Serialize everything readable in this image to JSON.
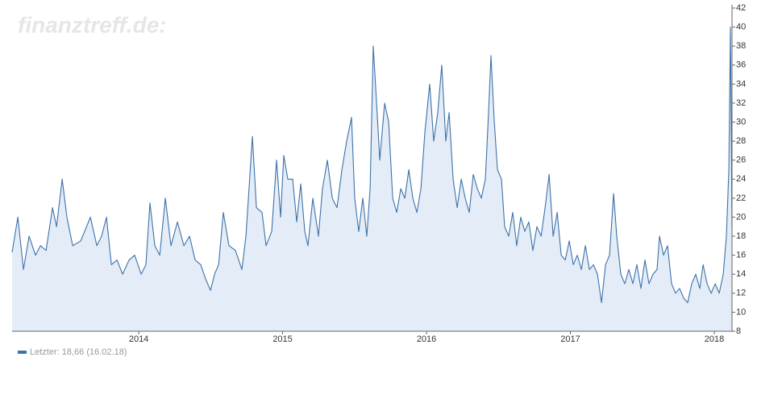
{
  "chart_data": {
    "type": "area",
    "watermark": "finanztreff.de:",
    "xlim": [
      2013.12,
      2018.123
    ],
    "xticks": [
      2014,
      2015,
      2016,
      2017,
      2018
    ],
    "ylim": [
      8,
      42
    ],
    "yticks": [
      8,
      10,
      12,
      14,
      16,
      18,
      20,
      22,
      24,
      26,
      28,
      30,
      32,
      34,
      36,
      38,
      40,
      42
    ],
    "y_axis_side": "right",
    "legend": "bottom-left",
    "series": [
      {
        "name": "Letzter: 18,66 (16.02.18)",
        "color": "#3e72aa",
        "fill": "#e3ecf7",
        "x": [
          2013.12,
          2013.16,
          2013.199,
          2013.238,
          2013.283,
          2013.317,
          2013.356,
          2013.401,
          2013.429,
          2013.468,
          2013.501,
          2013.541,
          2013.597,
          2013.664,
          2013.709,
          2013.742,
          2013.776,
          2013.81,
          2013.849,
          2013.888,
          2013.933,
          2013.972,
          2014.017,
          2014.05,
          2014.078,
          2014.112,
          2014.146,
          2014.185,
          2014.224,
          2014.269,
          2014.314,
          2014.353,
          2014.392,
          2014.431,
          2014.465,
          2014.499,
          2014.527,
          2014.555,
          2014.588,
          2014.627,
          2014.672,
          2014.717,
          2014.745,
          2014.79,
          2014.818,
          2014.857,
          2014.885,
          2014.924,
          2014.958,
          2014.986,
          2015.008,
          2015.036,
          2015.07,
          2015.098,
          2015.126,
          2015.154,
          2015.176,
          2015.21,
          2015.249,
          2015.277,
          2015.311,
          2015.345,
          2015.378,
          2015.412,
          2015.445,
          2015.479,
          2015.501,
          2015.529,
          2015.557,
          2015.585,
          2015.608,
          2015.63,
          2015.653,
          2015.675,
          2015.709,
          2015.737,
          2015.765,
          2015.793,
          2015.821,
          2015.849,
          2015.877,
          2015.905,
          2015.933,
          2015.961,
          2015.989,
          2016.022,
          2016.05,
          2016.078,
          2016.106,
          2016.134,
          2016.157,
          2016.185,
          2016.213,
          2016.241,
          2016.269,
          2016.297,
          2016.325,
          2016.353,
          2016.381,
          2016.409,
          2016.431,
          2016.448,
          2016.471,
          2016.493,
          2016.521,
          2016.543,
          2016.571,
          2016.599,
          2016.627,
          2016.655,
          2016.683,
          2016.711,
          2016.739,
          2016.767,
          2016.796,
          2016.824,
          2016.852,
          2016.88,
          2016.908,
          2016.936,
          2016.964,
          2016.992,
          2017.02,
          2017.048,
          2017.076,
          2017.104,
          2017.132,
          2017.16,
          2017.188,
          2017.216,
          2017.244,
          2017.272,
          2017.3,
          2017.322,
          2017.35,
          2017.378,
          2017.406,
          2017.434,
          2017.462,
          2017.49,
          2017.518,
          2017.546,
          2017.574,
          2017.602,
          2017.619,
          2017.647,
          2017.675,
          2017.703,
          2017.731,
          2017.759,
          2017.787,
          2017.815,
          2017.843,
          2017.871,
          2017.899,
          2017.922,
          2017.95,
          2017.978,
          2018.006,
          2018.034,
          2018.062,
          2018.084,
          2018.101,
          2018.112,
          2018.123
        ],
        "values": [
          16.3,
          20,
          14.5,
          18,
          16,
          17,
          16.5,
          21,
          19,
          24,
          20,
          17,
          17.5,
          20,
          17,
          18,
          20,
          15,
          15.5,
          14,
          15.5,
          16,
          14,
          15,
          21.5,
          17,
          16,
          22,
          17,
          19.5,
          17,
          18,
          15.5,
          15,
          13.5,
          12.3,
          14,
          15,
          20.5,
          17,
          16.5,
          14.5,
          18,
          28.5,
          21,
          20.5,
          17,
          18.5,
          26,
          20,
          26.5,
          24,
          24,
          19.5,
          23.5,
          18.5,
          17,
          22,
          18,
          23,
          26,
          22,
          21,
          25,
          28,
          30.5,
          22,
          18.5,
          22,
          18,
          23,
          38,
          32,
          26,
          32,
          30,
          22,
          20.5,
          23,
          22,
          25,
          22,
          20.5,
          23,
          29,
          34,
          28,
          31,
          36,
          28,
          31,
          24,
          21,
          24,
          22,
          20.5,
          24.5,
          23,
          22,
          24,
          31,
          37,
          30,
          25,
          24,
          19,
          18,
          20.5,
          17,
          20,
          18.5,
          19.5,
          16.5,
          19,
          18,
          21,
          24.5,
          18,
          20.5,
          16,
          15.5,
          17.5,
          15,
          16,
          14.5,
          17,
          14.5,
          15,
          14,
          11,
          15,
          16,
          22.5,
          18,
          14,
          13,
          14.5,
          13,
          15,
          12.5,
          15.5,
          13,
          14,
          14.5,
          18,
          16,
          17,
          13,
          12,
          12.5,
          11.5,
          11,
          13,
          14,
          12.5,
          15,
          13,
          12,
          13,
          12,
          14,
          18,
          25,
          40,
          18.66
        ]
      }
    ]
  }
}
